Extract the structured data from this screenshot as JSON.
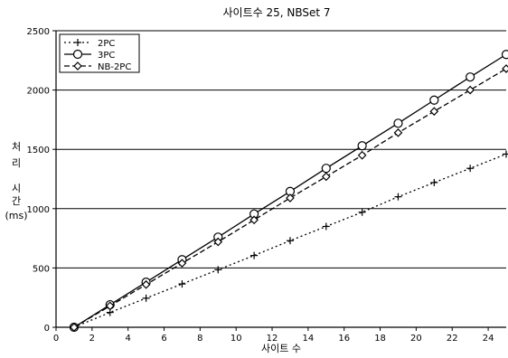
{
  "chart_data": {
    "type": "line",
    "title": "사이트수 25, NBSet 7",
    "xlabel": "사이트 수",
    "ylabel_lines": [
      "처",
      "리",
      "시",
      "간",
      "(ms)"
    ],
    "xlim": [
      0,
      25
    ],
    "ylim": [
      0,
      2500
    ],
    "x_ticks": [
      0,
      2,
      4,
      6,
      8,
      10,
      12,
      14,
      16,
      18,
      20,
      22,
      24
    ],
    "y_ticks": [
      0,
      500,
      1000,
      1500,
      2000,
      2500
    ],
    "grid": "horizontal",
    "legend_position": "top-left",
    "x": [
      1,
      3,
      5,
      7,
      9,
      11,
      13,
      15,
      17,
      19,
      21,
      23,
      25
    ],
    "series": [
      {
        "name": "2PC",
        "marker": "plus",
        "dash": "dotted",
        "color": "#000000",
        "values": [
          0,
          125,
          245,
          365,
          485,
          605,
          730,
          850,
          970,
          1100,
          1220,
          1340,
          1460
        ]
      },
      {
        "name": "3PC",
        "marker": "circle",
        "dash": "solid",
        "color": "#000000",
        "values": [
          0,
          190,
          380,
          570,
          760,
          955,
          1145,
          1340,
          1530,
          1720,
          1915,
          2110,
          2300
        ]
      },
      {
        "name": "NB-2PC",
        "marker": "diamond",
        "dash": "dashed",
        "color": "#000000",
        "values": [
          0,
          180,
          360,
          540,
          720,
          905,
          1090,
          1270,
          1450,
          1640,
          1820,
          2000,
          2180
        ]
      }
    ]
  }
}
